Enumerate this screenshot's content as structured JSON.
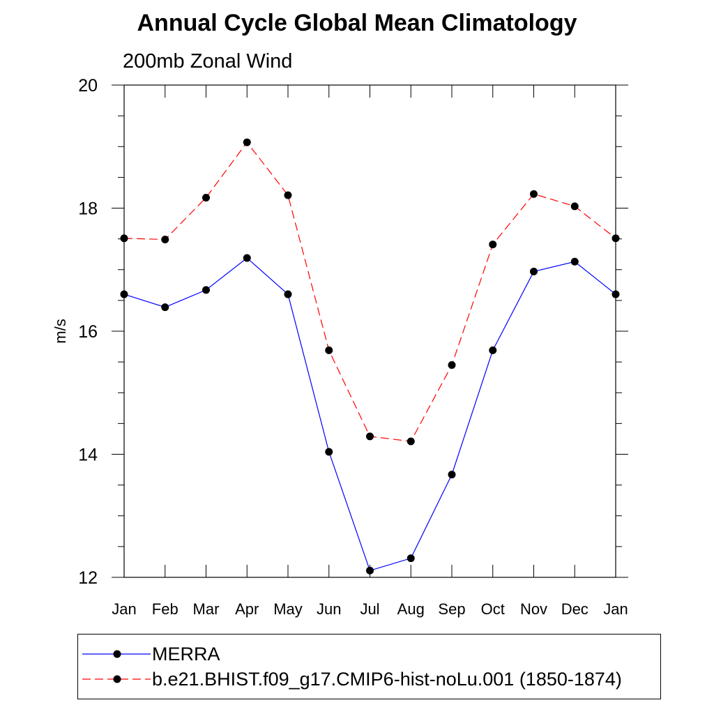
{
  "title": "Annual Cycle Global Mean Climatology",
  "subtitle": "200mb Zonal Wind",
  "chart_data": {
    "type": "line",
    "title": "Annual Cycle Global Mean Climatology",
    "subtitle": "200mb Zonal Wind",
    "xlabel": "",
    "ylabel": "m/s",
    "categories": [
      "Jan",
      "Feb",
      "Mar",
      "Apr",
      "May",
      "Jun",
      "Jul",
      "Aug",
      "Sep",
      "Oct",
      "Nov",
      "Dec",
      "Jan"
    ],
    "ylim": [
      12,
      20
    ],
    "yticks": [
      12,
      14,
      16,
      18,
      20
    ],
    "grid": false,
    "legend_position": "bottom",
    "series": [
      {
        "name": "MERRA",
        "color": "#0000ff",
        "line_style": "solid",
        "marker": "filled-circle",
        "values": [
          16.6,
          16.39,
          16.67,
          17.19,
          16.6,
          14.04,
          12.11,
          12.31,
          13.67,
          15.69,
          16.97,
          17.13,
          16.6
        ]
      },
      {
        "name": "b.e21.BHIST.f09_g17.CMIP6-hist-noLu.001 (1850-1874)",
        "color": "#ff0000",
        "line_style": "dashed",
        "marker": "filled-circle",
        "values": [
          17.51,
          17.49,
          18.17,
          19.07,
          18.21,
          15.69,
          14.29,
          14.21,
          15.45,
          17.41,
          18.23,
          18.03,
          17.51
        ]
      }
    ]
  },
  "legend": {
    "items": [
      {
        "label": "MERRA"
      },
      {
        "label": "b.e21.BHIST.f09_g17.CMIP6-hist-noLu.001 (1850-1874)"
      }
    ]
  }
}
